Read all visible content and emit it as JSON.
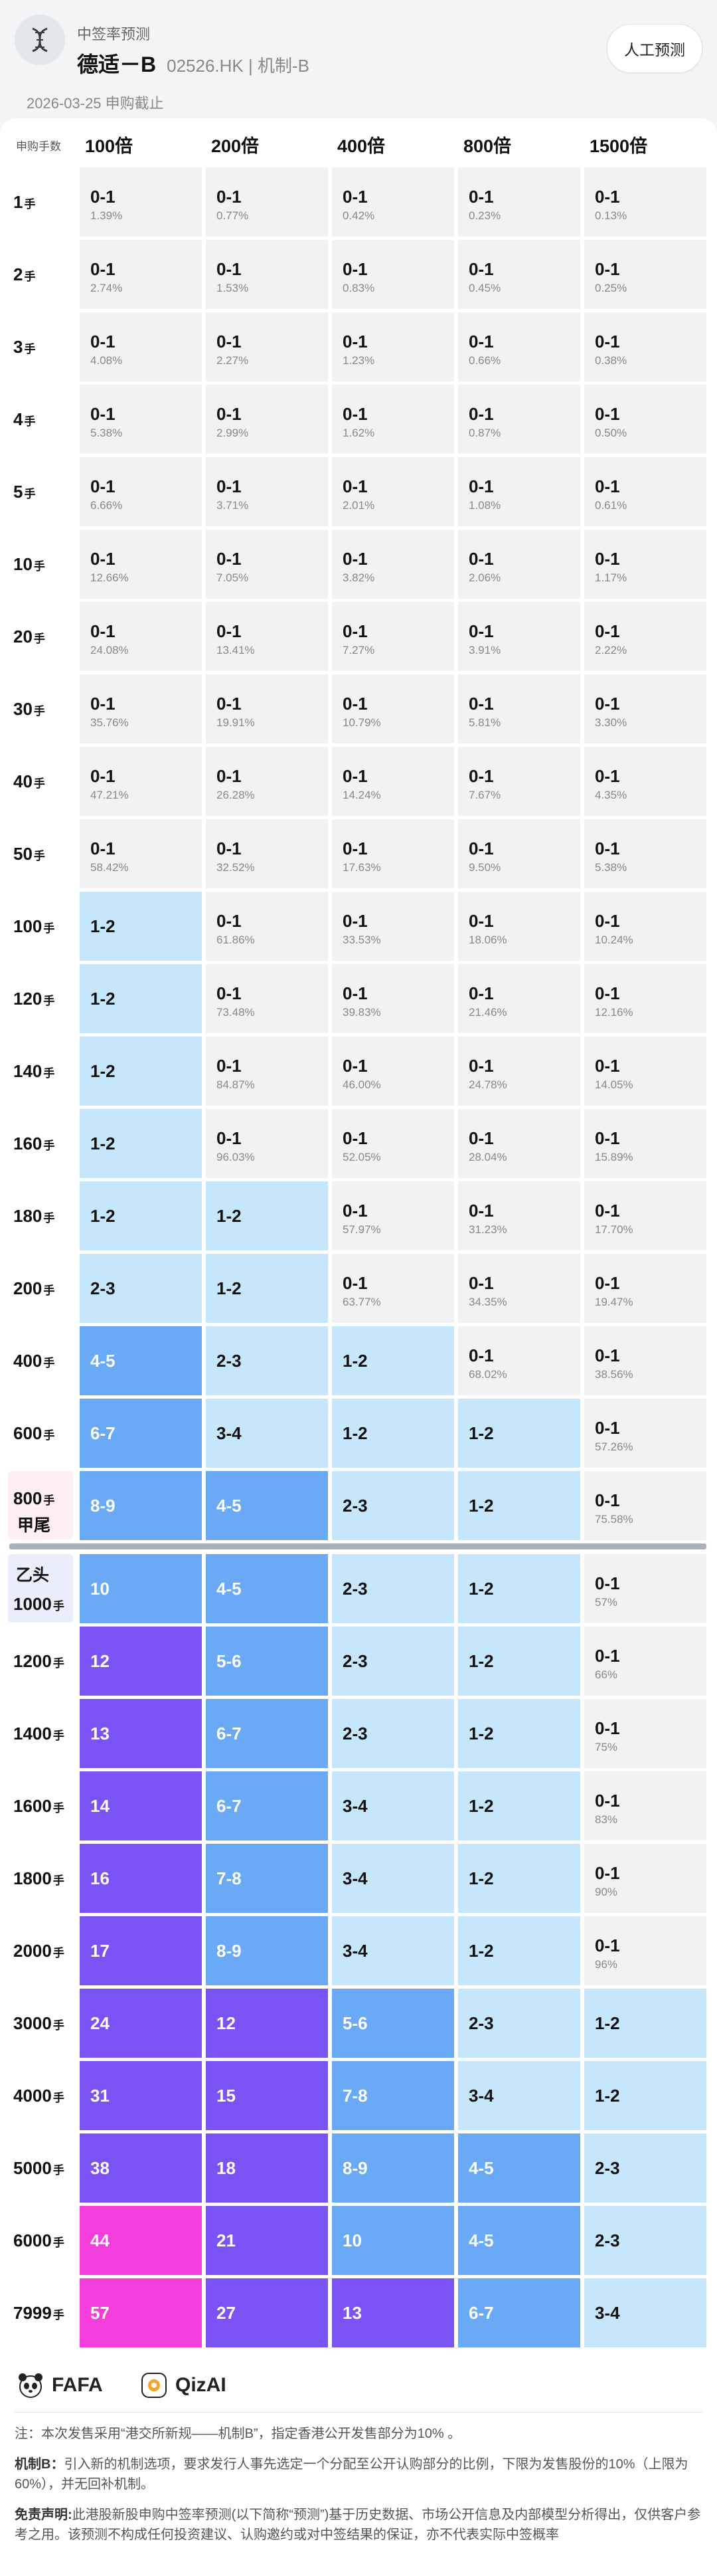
{
  "header": {
    "app_title": "中签率预测",
    "stock_name": "德适－B",
    "stock_code_mech": "02526.HK | 机制-B",
    "manual_button": "人工预测",
    "date_line": "2026-03-25 申购截止"
  },
  "table": {
    "corner_label": "申购手数",
    "columns": [
      "100倍",
      "200倍",
      "400倍",
      "800倍",
      "1500倍"
    ],
    "tail_label": "甲尾",
    "head_label": "乙头",
    "rows": [
      {
        "n": "1",
        "unit": "手",
        "cells": [
          {
            "v": "0-1",
            "p": "1.39%",
            "l": 0
          },
          {
            "v": "0-1",
            "p": "0.77%",
            "l": 0
          },
          {
            "v": "0-1",
            "p": "0.42%",
            "l": 0
          },
          {
            "v": "0-1",
            "p": "0.23%",
            "l": 0
          },
          {
            "v": "0-1",
            "p": "0.13%",
            "l": 0
          }
        ]
      },
      {
        "n": "2",
        "unit": "手",
        "cells": [
          {
            "v": "0-1",
            "p": "2.74%",
            "l": 0
          },
          {
            "v": "0-1",
            "p": "1.53%",
            "l": 0
          },
          {
            "v": "0-1",
            "p": "0.83%",
            "l": 0
          },
          {
            "v": "0-1",
            "p": "0.45%",
            "l": 0
          },
          {
            "v": "0-1",
            "p": "0.25%",
            "l": 0
          }
        ]
      },
      {
        "n": "3",
        "unit": "手",
        "cells": [
          {
            "v": "0-1",
            "p": "4.08%",
            "l": 0
          },
          {
            "v": "0-1",
            "p": "2.27%",
            "l": 0
          },
          {
            "v": "0-1",
            "p": "1.23%",
            "l": 0
          },
          {
            "v": "0-1",
            "p": "0.66%",
            "l": 0
          },
          {
            "v": "0-1",
            "p": "0.38%",
            "l": 0
          }
        ]
      },
      {
        "n": "4",
        "unit": "手",
        "cells": [
          {
            "v": "0-1",
            "p": "5.38%",
            "l": 0
          },
          {
            "v": "0-1",
            "p": "2.99%",
            "l": 0
          },
          {
            "v": "0-1",
            "p": "1.62%",
            "l": 0
          },
          {
            "v": "0-1",
            "p": "0.87%",
            "l": 0
          },
          {
            "v": "0-1",
            "p": "0.50%",
            "l": 0
          }
        ]
      },
      {
        "n": "5",
        "unit": "手",
        "cells": [
          {
            "v": "0-1",
            "p": "6.66%",
            "l": 0
          },
          {
            "v": "0-1",
            "p": "3.71%",
            "l": 0
          },
          {
            "v": "0-1",
            "p": "2.01%",
            "l": 0
          },
          {
            "v": "0-1",
            "p": "1.08%",
            "l": 0
          },
          {
            "v": "0-1",
            "p": "0.61%",
            "l": 0
          }
        ]
      },
      {
        "n": "10",
        "unit": "手",
        "cells": [
          {
            "v": "0-1",
            "p": "12.66%",
            "l": 0
          },
          {
            "v": "0-1",
            "p": "7.05%",
            "l": 0
          },
          {
            "v": "0-1",
            "p": "3.82%",
            "l": 0
          },
          {
            "v": "0-1",
            "p": "2.06%",
            "l": 0
          },
          {
            "v": "0-1",
            "p": "1.17%",
            "l": 0
          }
        ]
      },
      {
        "n": "20",
        "unit": "手",
        "cells": [
          {
            "v": "0-1",
            "p": "24.08%",
            "l": 0
          },
          {
            "v": "0-1",
            "p": "13.41%",
            "l": 0
          },
          {
            "v": "0-1",
            "p": "7.27%",
            "l": 0
          },
          {
            "v": "0-1",
            "p": "3.91%",
            "l": 0
          },
          {
            "v": "0-1",
            "p": "2.22%",
            "l": 0
          }
        ]
      },
      {
        "n": "30",
        "unit": "手",
        "cells": [
          {
            "v": "0-1",
            "p": "35.76%",
            "l": 0
          },
          {
            "v": "0-1",
            "p": "19.91%",
            "l": 0
          },
          {
            "v": "0-1",
            "p": "10.79%",
            "l": 0
          },
          {
            "v": "0-1",
            "p": "5.81%",
            "l": 0
          },
          {
            "v": "0-1",
            "p": "3.30%",
            "l": 0
          }
        ]
      },
      {
        "n": "40",
        "unit": "手",
        "cells": [
          {
            "v": "0-1",
            "p": "47.21%",
            "l": 0
          },
          {
            "v": "0-1",
            "p": "26.28%",
            "l": 0
          },
          {
            "v": "0-1",
            "p": "14.24%",
            "l": 0
          },
          {
            "v": "0-1",
            "p": "7.67%",
            "l": 0
          },
          {
            "v": "0-1",
            "p": "4.35%",
            "l": 0
          }
        ]
      },
      {
        "n": "50",
        "unit": "手",
        "cells": [
          {
            "v": "0-1",
            "p": "58.42%",
            "l": 0
          },
          {
            "v": "0-1",
            "p": "32.52%",
            "l": 0
          },
          {
            "v": "0-1",
            "p": "17.63%",
            "l": 0
          },
          {
            "v": "0-1",
            "p": "9.50%",
            "l": 0
          },
          {
            "v": "0-1",
            "p": "5.38%",
            "l": 0
          }
        ]
      },
      {
        "n": "100",
        "unit": "手",
        "cells": [
          {
            "v": "1-2",
            "p": "",
            "l": 1
          },
          {
            "v": "0-1",
            "p": "61.86%",
            "l": 0
          },
          {
            "v": "0-1",
            "p": "33.53%",
            "l": 0
          },
          {
            "v": "0-1",
            "p": "18.06%",
            "l": 0
          },
          {
            "v": "0-1",
            "p": "10.24%",
            "l": 0
          }
        ]
      },
      {
        "n": "120",
        "unit": "手",
        "cells": [
          {
            "v": "1-2",
            "p": "",
            "l": 1
          },
          {
            "v": "0-1",
            "p": "73.48%",
            "l": 0
          },
          {
            "v": "0-1",
            "p": "39.83%",
            "l": 0
          },
          {
            "v": "0-1",
            "p": "21.46%",
            "l": 0
          },
          {
            "v": "0-1",
            "p": "12.16%",
            "l": 0
          }
        ]
      },
      {
        "n": "140",
        "unit": "手",
        "cells": [
          {
            "v": "1-2",
            "p": "",
            "l": 1
          },
          {
            "v": "0-1",
            "p": "84.87%",
            "l": 0
          },
          {
            "v": "0-1",
            "p": "46.00%",
            "l": 0
          },
          {
            "v": "0-1",
            "p": "24.78%",
            "l": 0
          },
          {
            "v": "0-1",
            "p": "14.05%",
            "l": 0
          }
        ]
      },
      {
        "n": "160",
        "unit": "手",
        "cells": [
          {
            "v": "1-2",
            "p": "",
            "l": 1
          },
          {
            "v": "0-1",
            "p": "96.03%",
            "l": 0
          },
          {
            "v": "0-1",
            "p": "52.05%",
            "l": 0
          },
          {
            "v": "0-1",
            "p": "28.04%",
            "l": 0
          },
          {
            "v": "0-1",
            "p": "15.89%",
            "l": 0
          }
        ]
      },
      {
        "n": "180",
        "unit": "手",
        "cells": [
          {
            "v": "1-2",
            "p": "",
            "l": 1
          },
          {
            "v": "1-2",
            "p": "",
            "l": 1
          },
          {
            "v": "0-1",
            "p": "57.97%",
            "l": 0
          },
          {
            "v": "0-1",
            "p": "31.23%",
            "l": 0
          },
          {
            "v": "0-1",
            "p": "17.70%",
            "l": 0
          }
        ]
      },
      {
        "n": "200",
        "unit": "手",
        "cells": [
          {
            "v": "2-3",
            "p": "",
            "l": 1
          },
          {
            "v": "1-2",
            "p": "",
            "l": 1
          },
          {
            "v": "0-1",
            "p": "63.77%",
            "l": 0
          },
          {
            "v": "0-1",
            "p": "34.35%",
            "l": 0
          },
          {
            "v": "0-1",
            "p": "19.47%",
            "l": 0
          }
        ]
      },
      {
        "n": "400",
        "unit": "手",
        "cells": [
          {
            "v": "4-5",
            "p": "",
            "l": 2
          },
          {
            "v": "2-3",
            "p": "",
            "l": 1
          },
          {
            "v": "1-2",
            "p": "",
            "l": 1
          },
          {
            "v": "0-1",
            "p": "68.02%",
            "l": 0
          },
          {
            "v": "0-1",
            "p": "38.56%",
            "l": 0
          }
        ]
      },
      {
        "n": "600",
        "unit": "手",
        "cells": [
          {
            "v": "6-7",
            "p": "",
            "l": 2
          },
          {
            "v": "3-4",
            "p": "",
            "l": 1
          },
          {
            "v": "1-2",
            "p": "",
            "l": 1
          },
          {
            "v": "1-2",
            "p": "",
            "l": 1
          },
          {
            "v": "0-1",
            "p": "57.26%",
            "l": 0
          }
        ]
      },
      {
        "n": "800",
        "unit": "手",
        "tail": true,
        "cells": [
          {
            "v": "8-9",
            "p": "",
            "l": 2
          },
          {
            "v": "4-5",
            "p": "",
            "l": 2
          },
          {
            "v": "2-3",
            "p": "",
            "l": 1
          },
          {
            "v": "1-2",
            "p": "",
            "l": 1
          },
          {
            "v": "0-1",
            "p": "75.58%",
            "l": 0
          }
        ]
      },
      {
        "n": "1000",
        "unit": "手",
        "head": true,
        "cells": [
          {
            "v": "10",
            "p": "",
            "l": 2
          },
          {
            "v": "4-5",
            "p": "",
            "l": 2
          },
          {
            "v": "2-3",
            "p": "",
            "l": 1
          },
          {
            "v": "1-2",
            "p": "",
            "l": 1
          },
          {
            "v": "0-1",
            "p": "57%",
            "l": 0
          }
        ]
      },
      {
        "n": "1200",
        "unit": "手",
        "cells": [
          {
            "v": "12",
            "p": "",
            "l": 3
          },
          {
            "v": "5-6",
            "p": "",
            "l": 2
          },
          {
            "v": "2-3",
            "p": "",
            "l": 1
          },
          {
            "v": "1-2",
            "p": "",
            "l": 1
          },
          {
            "v": "0-1",
            "p": "66%",
            "l": 0
          }
        ]
      },
      {
        "n": "1400",
        "unit": "手",
        "cells": [
          {
            "v": "13",
            "p": "",
            "l": 3
          },
          {
            "v": "6-7",
            "p": "",
            "l": 2
          },
          {
            "v": "2-3",
            "p": "",
            "l": 1
          },
          {
            "v": "1-2",
            "p": "",
            "l": 1
          },
          {
            "v": "0-1",
            "p": "75%",
            "l": 0
          }
        ]
      },
      {
        "n": "1600",
        "unit": "手",
        "cells": [
          {
            "v": "14",
            "p": "",
            "l": 3
          },
          {
            "v": "6-7",
            "p": "",
            "l": 2
          },
          {
            "v": "3-4",
            "p": "",
            "l": 1
          },
          {
            "v": "1-2",
            "p": "",
            "l": 1
          },
          {
            "v": "0-1",
            "p": "83%",
            "l": 0
          }
        ]
      },
      {
        "n": "1800",
        "unit": "手",
        "cells": [
          {
            "v": "16",
            "p": "",
            "l": 3
          },
          {
            "v": "7-8",
            "p": "",
            "l": 2
          },
          {
            "v": "3-4",
            "p": "",
            "l": 1
          },
          {
            "v": "1-2",
            "p": "",
            "l": 1
          },
          {
            "v": "0-1",
            "p": "90%",
            "l": 0
          }
        ]
      },
      {
        "n": "2000",
        "unit": "手",
        "cells": [
          {
            "v": "17",
            "p": "",
            "l": 3
          },
          {
            "v": "8-9",
            "p": "",
            "l": 2
          },
          {
            "v": "3-4",
            "p": "",
            "l": 1
          },
          {
            "v": "1-2",
            "p": "",
            "l": 1
          },
          {
            "v": "0-1",
            "p": "96%",
            "l": 0
          }
        ]
      },
      {
        "n": "3000",
        "unit": "手",
        "cells": [
          {
            "v": "24",
            "p": "",
            "l": 3
          },
          {
            "v": "12",
            "p": "",
            "l": 3
          },
          {
            "v": "5-6",
            "p": "",
            "l": 2
          },
          {
            "v": "2-3",
            "p": "",
            "l": 1
          },
          {
            "v": "1-2",
            "p": "",
            "l": 1
          }
        ]
      },
      {
        "n": "4000",
        "unit": "手",
        "cells": [
          {
            "v": "31",
            "p": "",
            "l": 3
          },
          {
            "v": "15",
            "p": "",
            "l": 3
          },
          {
            "v": "7-8",
            "p": "",
            "l": 2
          },
          {
            "v": "3-4",
            "p": "",
            "l": 1
          },
          {
            "v": "1-2",
            "p": "",
            "l": 1
          }
        ]
      },
      {
        "n": "5000",
        "unit": "手",
        "cells": [
          {
            "v": "38",
            "p": "",
            "l": 3
          },
          {
            "v": "18",
            "p": "",
            "l": 3
          },
          {
            "v": "8-9",
            "p": "",
            "l": 2
          },
          {
            "v": "4-5",
            "p": "",
            "l": 2
          },
          {
            "v": "2-3",
            "p": "",
            "l": 1
          }
        ]
      },
      {
        "n": "6000",
        "unit": "手",
        "cells": [
          {
            "v": "44",
            "p": "",
            "l": 4
          },
          {
            "v": "21",
            "p": "",
            "l": 3
          },
          {
            "v": "10",
            "p": "",
            "l": 2
          },
          {
            "v": "4-5",
            "p": "",
            "l": 2
          },
          {
            "v": "2-3",
            "p": "",
            "l": 1
          }
        ]
      },
      {
        "n": "7999",
        "unit": "手",
        "cells": [
          {
            "v": "57",
            "p": "",
            "l": 4
          },
          {
            "v": "27",
            "p": "",
            "l": 3
          },
          {
            "v": "13",
            "p": "",
            "l": 3
          },
          {
            "v": "6-7",
            "p": "",
            "l": 2
          },
          {
            "v": "3-4",
            "p": "",
            "l": 1
          }
        ]
      }
    ]
  },
  "footer": {
    "brand1": "FAFA",
    "brand2": "QizAI",
    "note1": "注：本次发售采用“港交所新规——机制B”，指定香港公开发售部分为10% 。",
    "note2_label": "机制B：",
    "note2": "引入新的机制选项，要求发行人事先选定一个分配至公开认购部分的比例，下限为发售股份的10%（上限为60%），并无回补机制。",
    "note3_label": "免责声明:",
    "note3": "此港股新股申购中签率预测(以下简称“预测”)基于历史数据、市场公开信息及内部模型分析得出，仅供客户参考之用。该预测不构成任何投资建议、认购邀约或对中签结果的保证，亦不代表实际中签概率"
  },
  "colors": {
    "lvl0": "#f1f2f4",
    "lvl1": "#c6e6fb",
    "lvl2": "#6aa9f5",
    "lvl3": "#7b52f4",
    "lvl4": "#f33ddc"
  }
}
